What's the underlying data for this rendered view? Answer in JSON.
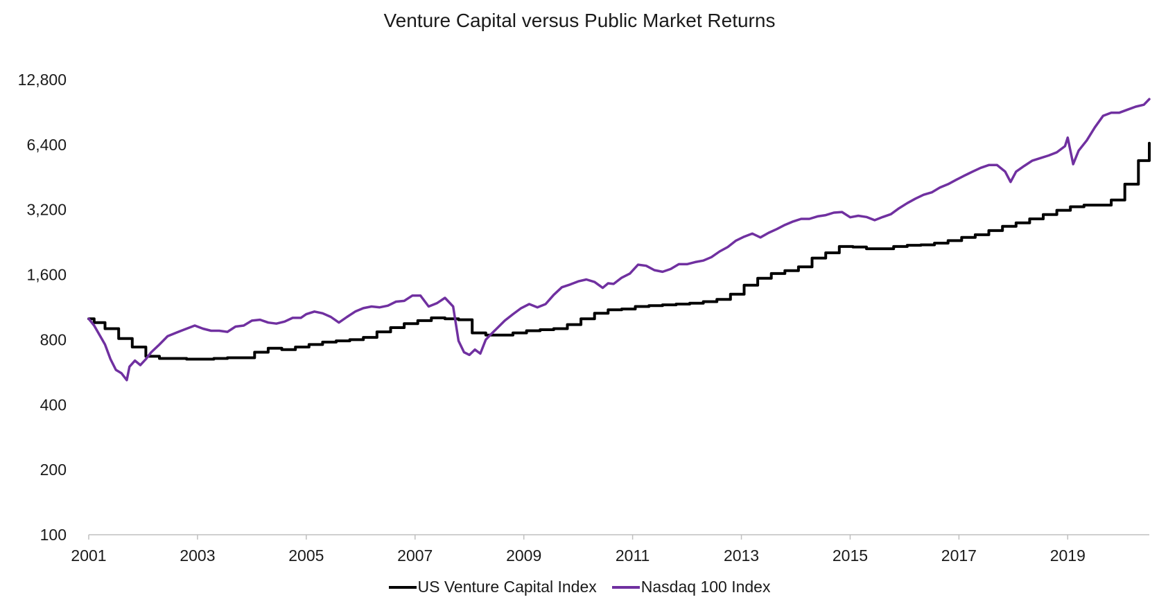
{
  "chart_data": {
    "type": "line",
    "title": "Venture Capital versus Public Market Returns",
    "xlabel": "",
    "ylabel": "",
    "y_scale": "log2",
    "ylim": [
      100,
      12800
    ],
    "y_ticks": [
      100,
      200,
      400,
      800,
      1600,
      3200,
      6400,
      12800
    ],
    "y_tick_labels": [
      "100",
      "200",
      "400",
      "800",
      "1,600",
      "3,200",
      "6,400",
      "12,800"
    ],
    "xlim": [
      2001.0,
      2020.5
    ],
    "x_ticks": [
      2001,
      2003,
      2005,
      2007,
      2009,
      2011,
      2013,
      2015,
      2017,
      2019
    ],
    "x_tick_labels": [
      "2001",
      "2003",
      "2005",
      "2007",
      "2009",
      "2011",
      "2013",
      "2015",
      "2017",
      "2019"
    ],
    "grid": false,
    "legend_position": "bottom",
    "series": [
      {
        "name": "US Venture Capital Index",
        "color": "#000000",
        "step": true,
        "x": [
          2001.0,
          2001.1,
          2001.3,
          2001.55,
          2001.8,
          2002.05,
          2002.3,
          2002.55,
          2002.8,
          2003.05,
          2003.3,
          2003.55,
          2003.8,
          2004.05,
          2004.3,
          2004.55,
          2004.8,
          2005.05,
          2005.3,
          2005.55,
          2005.8,
          2006.05,
          2006.3,
          2006.55,
          2006.8,
          2007.05,
          2007.3,
          2007.55,
          2007.8,
          2008.05,
          2008.3,
          2008.55,
          2008.8,
          2009.05,
          2009.3,
          2009.55,
          2009.8,
          2010.05,
          2010.3,
          2010.55,
          2010.8,
          2011.05,
          2011.3,
          2011.55,
          2011.8,
          2012.05,
          2012.3,
          2012.55,
          2012.8,
          2013.05,
          2013.3,
          2013.55,
          2013.8,
          2014.05,
          2014.3,
          2014.55,
          2014.8,
          2015.05,
          2015.3,
          2015.55,
          2015.8,
          2016.05,
          2016.3,
          2016.55,
          2016.8,
          2017.05,
          2017.3,
          2017.55,
          2017.8,
          2018.05,
          2018.3,
          2018.55,
          2018.8,
          2019.05,
          2019.3,
          2019.55,
          2019.8,
          2020.05,
          2020.3,
          2020.5
        ],
        "y": [
          1000,
          960,
          900,
          810,
          740,
          670,
          655,
          655,
          650,
          650,
          655,
          660,
          660,
          700,
          730,
          720,
          740,
          760,
          780,
          790,
          800,
          820,
          870,
          910,
          950,
          980,
          1010,
          1000,
          990,
          860,
          840,
          840,
          860,
          880,
          890,
          900,
          940,
          1000,
          1060,
          1100,
          1110,
          1140,
          1150,
          1160,
          1170,
          1180,
          1200,
          1230,
          1300,
          1430,
          1540,
          1620,
          1670,
          1740,
          1910,
          2020,
          2160,
          2150,
          2110,
          2110,
          2160,
          2190,
          2200,
          2240,
          2300,
          2380,
          2450,
          2560,
          2680,
          2780,
          2900,
          3040,
          3180,
          3300,
          3360,
          3360,
          3550,
          4200,
          5400,
          6500
        ]
      },
      {
        "name": "Nasdaq 100 Index",
        "color": "#7030a0",
        "step": false,
        "x": [
          2001.0,
          2001.1,
          2001.2,
          2001.3,
          2001.4,
          2001.5,
          2001.6,
          2001.7,
          2001.75,
          2001.85,
          2001.95,
          2002.05,
          2002.15,
          2002.3,
          2002.45,
          2002.6,
          2002.75,
          2002.95,
          2003.1,
          2003.25,
          2003.4,
          2003.55,
          2003.7,
          2003.85,
          2004.0,
          2004.15,
          2004.3,
          2004.45,
          2004.6,
          2004.75,
          2004.9,
          2005.0,
          2005.15,
          2005.3,
          2005.45,
          2005.6,
          2005.75,
          2005.9,
          2006.05,
          2006.2,
          2006.35,
          2006.5,
          2006.65,
          2006.8,
          2006.95,
          2007.1,
          2007.25,
          2007.4,
          2007.55,
          2007.7,
          2007.8,
          2007.9,
          2008.0,
          2008.1,
          2008.2,
          2008.3,
          2008.4,
          2008.5,
          2008.65,
          2008.8,
          2008.95,
          2009.1,
          2009.25,
          2009.4,
          2009.55,
          2009.7,
          2009.85,
          2010.0,
          2010.15,
          2010.3,
          2010.45,
          2010.55,
          2010.65,
          2010.8,
          2010.95,
          2011.1,
          2011.25,
          2011.4,
          2011.55,
          2011.7,
          2011.85,
          2012.0,
          2012.15,
          2012.3,
          2012.45,
          2012.6,
          2012.75,
          2012.9,
          2013.05,
          2013.2,
          2013.35,
          2013.5,
          2013.65,
          2013.8,
          2013.95,
          2014.1,
          2014.25,
          2014.4,
          2014.55,
          2014.7,
          2014.85,
          2015.0,
          2015.15,
          2015.3,
          2015.45,
          2015.6,
          2015.75,
          2015.9,
          2016.05,
          2016.2,
          2016.35,
          2016.5,
          2016.65,
          2016.8,
          2016.95,
          2017.1,
          2017.25,
          2017.4,
          2017.55,
          2017.7,
          2017.85,
          2017.95,
          2018.05,
          2018.2,
          2018.35,
          2018.5,
          2018.65,
          2018.8,
          2018.95,
          2019.0,
          2019.1,
          2019.2,
          2019.35,
          2019.5,
          2019.65,
          2019.8,
          2019.95,
          2020.1,
          2020.25,
          2020.4,
          2020.5
        ],
        "y": [
          1000,
          930,
          840,
          760,
          650,
          580,
          560,
          520,
          600,
          640,
          610,
          650,
          700,
          760,
          830,
          860,
          890,
          930,
          900,
          880,
          880,
          870,
          920,
          930,
          980,
          990,
          960,
          950,
          970,
          1010,
          1010,
          1050,
          1080,
          1060,
          1020,
          960,
          1020,
          1080,
          1120,
          1140,
          1130,
          1150,
          1200,
          1210,
          1280,
          1280,
          1140,
          1180,
          1250,
          1140,
          790,
          700,
          680,
          720,
          690,
          800,
          850,
          900,
          980,
          1050,
          1120,
          1170,
          1130,
          1170,
          1290,
          1400,
          1440,
          1490,
          1520,
          1480,
          1390,
          1460,
          1450,
          1550,
          1620,
          1780,
          1760,
          1680,
          1650,
          1700,
          1790,
          1790,
          1830,
          1860,
          1930,
          2050,
          2150,
          2300,
          2400,
          2480,
          2380,
          2500,
          2600,
          2720,
          2820,
          2900,
          2900,
          2980,
          3020,
          3100,
          3120,
          2950,
          3000,
          2960,
          2860,
          2960,
          3050,
          3250,
          3430,
          3600,
          3750,
          3850,
          4050,
          4200,
          4400,
          4600,
          4800,
          5000,
          5150,
          5150,
          4800,
          4300,
          4800,
          5100,
          5400,
          5550,
          5700,
          5900,
          6300,
          6900,
          5200,
          6000,
          6700,
          7700,
          8700,
          9000,
          9000,
          9300,
          9600,
          9800,
          10400
        ]
      }
    ]
  }
}
